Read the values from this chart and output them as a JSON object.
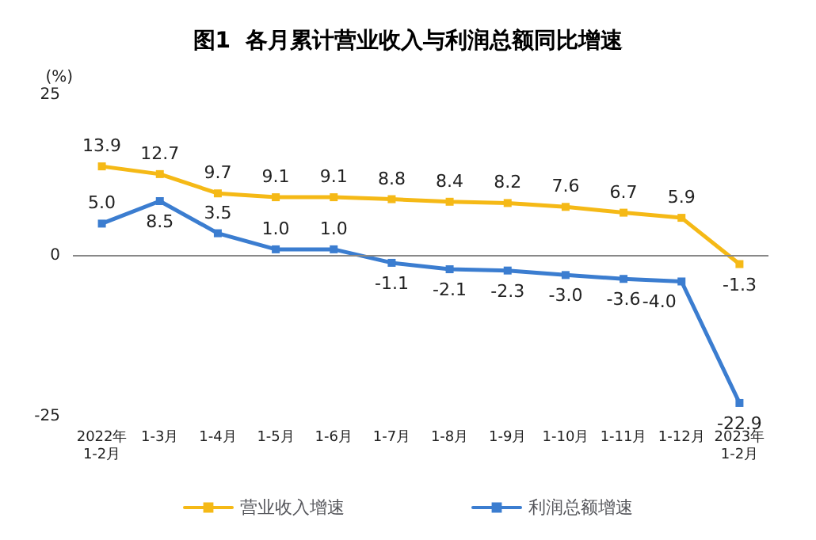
{
  "chart_data": {
    "type": "line",
    "title": "图1  各月累计营业收入与利润总额同比增速",
    "ylabel": "(%)",
    "categories": [
      "2022年\n1-2月",
      "1-3月",
      "1-4月",
      "1-5月",
      "1-6月",
      "1-7月",
      "1-8月",
      "1-9月",
      "1-10月",
      "1-11月",
      "1-12月",
      "2023年\n1-2月"
    ],
    "series": [
      {
        "name": "营业收入增速",
        "color": "#f5b916",
        "values": [
          13.9,
          12.7,
          9.7,
          9.1,
          9.1,
          8.8,
          8.4,
          8.2,
          7.6,
          6.7,
          5.9,
          -1.3
        ],
        "value_labels": [
          "13.9",
          "12.7",
          "9.7",
          "9.1",
          "9.1",
          "8.8",
          "8.4",
          "8.2",
          "7.6",
          "6.7",
          "5.9",
          "-1.3"
        ]
      },
      {
        "name": "利润总额增速",
        "color": "#3b7dd0",
        "values": [
          5.0,
          8.5,
          3.5,
          1.0,
          1.0,
          -1.1,
          -2.1,
          -2.3,
          -3.0,
          -3.6,
          -4.0,
          -22.9
        ],
        "value_labels": [
          "5.0",
          "8.5",
          "3.5",
          "1.0",
          "1.0",
          "-1.1",
          "-2.1",
          "-2.3",
          "-3.0",
          "-3.6",
          "-4.0",
          "-22.9"
        ]
      }
    ],
    "ylim": [
      -25,
      25
    ],
    "yticks": [
      -25,
      0,
      25
    ],
    "ref_lines": [
      {
        "axis": "y",
        "value": 0,
        "color": "#888888"
      }
    ],
    "legend": "bottom",
    "marker": "square",
    "line_style": "solid",
    "grid": false
  }
}
